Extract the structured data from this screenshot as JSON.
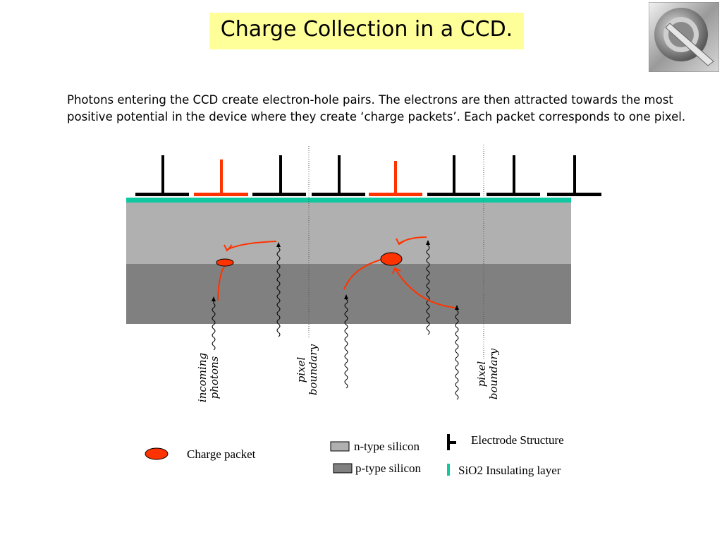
{
  "slide": {
    "title": "Charge Collection in a CCD.",
    "intro": "Photons entering the CCD create electron-hole pairs. The electrons are then attracted towards the most positive potential in the device where they create ‘charge packets’. Each packet corresponds to one pixel.",
    "logo_icon": "circle-slash-logo-icon"
  },
  "diagram": {
    "labels": {
      "incoming_photons_line1": "incoming",
      "incoming_photons_line2": "photons",
      "pixel_boundary_1_line1": "pixel",
      "pixel_boundary_1_line2": "boundary",
      "pixel_boundary_2_line1": "pixel",
      "pixel_boundary_2_line2": "boundary"
    },
    "colors": {
      "electrode_active": "#ff3300",
      "electrode_idle": "#000000",
      "sio2": "#10c8a0",
      "n_type": "#b0b0b0",
      "p_type": "#808080",
      "charge_packet": "#ff3300"
    }
  },
  "legend": {
    "charge_packet": "Charge packet",
    "n_type": "n-type silicon",
    "p_type": "p-type silicon",
    "electrode": "Electrode Structure",
    "sio2": "SiO2 Insulating layer"
  }
}
